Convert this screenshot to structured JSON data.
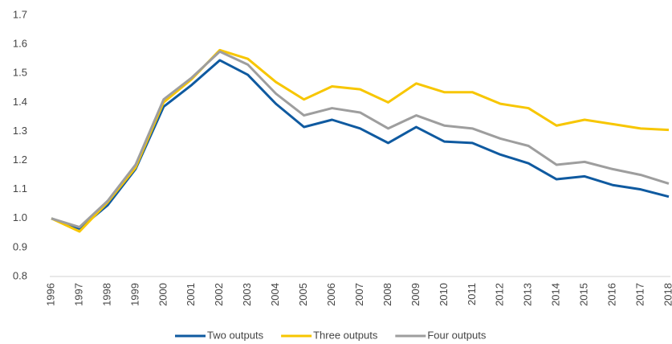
{
  "chart_data": {
    "type": "line",
    "categories": [
      "1996",
      "1997",
      "1998",
      "1999",
      "2000",
      "2001",
      "2002",
      "2003",
      "2004",
      "2005",
      "2006",
      "2007",
      "2008",
      "2009",
      "2010",
      "2011",
      "2012",
      "2013",
      "2014",
      "2015",
      "2016",
      "2017",
      "2018"
    ],
    "series": [
      {
        "name": "Two outputs",
        "color": "#0f5aa0",
        "values": [
          1.0,
          0.965,
          1.045,
          1.17,
          1.385,
          1.46,
          1.545,
          1.495,
          1.395,
          1.315,
          1.34,
          1.31,
          1.26,
          1.315,
          1.265,
          1.26,
          1.22,
          1.19,
          1.135,
          1.145,
          1.115,
          1.1,
          1.075
        ]
      },
      {
        "name": "Three outputs",
        "color": "#f7c600",
        "values": [
          1.0,
          0.955,
          1.055,
          1.175,
          1.4,
          1.48,
          1.58,
          1.55,
          1.47,
          1.41,
          1.455,
          1.445,
          1.4,
          1.465,
          1.435,
          1.435,
          1.395,
          1.38,
          1.32,
          1.34,
          1.325,
          1.31,
          1.305
        ]
      },
      {
        "name": "Four outputs",
        "color": "#9e9e9e",
        "values": [
          1.0,
          0.97,
          1.06,
          1.185,
          1.41,
          1.485,
          1.575,
          1.53,
          1.43,
          1.355,
          1.38,
          1.365,
          1.31,
          1.355,
          1.32,
          1.31,
          1.275,
          1.25,
          1.185,
          1.195,
          1.17,
          1.15,
          1.12
        ]
      }
    ],
    "ylim": [
      0.8,
      1.7
    ],
    "yticks": [
      0.8,
      0.9,
      {
        "value": 1,
        "label": "1.0"
      },
      1.1,
      1.2,
      1.3,
      1.4,
      1.5,
      1.6,
      1.7
    ],
    "grid": false,
    "legend": "bottom"
  }
}
